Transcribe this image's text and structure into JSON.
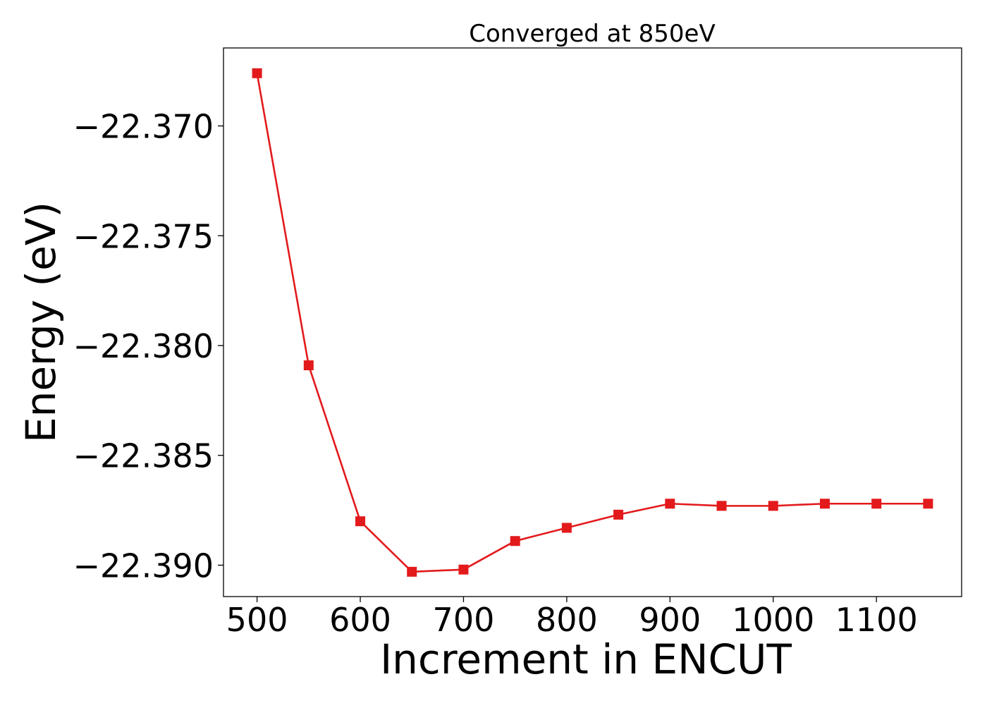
{
  "chart_data": {
    "type": "line",
    "title": "Converged at 850eV",
    "xlabel": "Increment in ENCUT",
    "ylabel": "Energy (eV)",
    "xlim": [
      467.5,
      1182.5
    ],
    "ylim": [
      -22.39143,
      -22.36645
    ],
    "xticks": [
      500,
      600,
      700,
      800,
      900,
      1000,
      1100
    ],
    "xtick_labels": [
      "500",
      "600",
      "700",
      "800",
      "900",
      "1000",
      "1100"
    ],
    "yticks": [
      -22.37,
      -22.375,
      -22.38,
      -22.385,
      -22.39
    ],
    "ytick_labels": [
      "−22.370",
      "−22.375",
      "−22.380",
      "−22.385",
      "−22.390"
    ],
    "grid": false,
    "legend": "none",
    "series": [
      {
        "color": "#e31a1c",
        "marker": "square",
        "x": [
          500,
          550,
          600,
          650,
          700,
          750,
          800,
          850,
          900,
          950,
          1000,
          1050,
          1100,
          1150
        ],
        "y": [
          -22.3676,
          -22.3809,
          -22.388,
          -22.3903,
          -22.3902,
          -22.3889,
          -22.3883,
          -22.3877,
          -22.3872,
          -22.3873,
          -22.3873,
          -22.3872,
          -22.3872,
          -22.3872
        ]
      }
    ]
  }
}
